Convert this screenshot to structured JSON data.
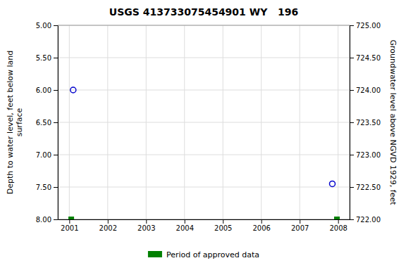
{
  "chart_data": {
    "type": "scatter",
    "title": "USGS 413733075454901 WY   196",
    "y_label": "Depth to water level, feet below land\nsurface",
    "y2_label": "Groundwater level above NGVD 1929, feet",
    "xlim": [
      2000.7,
      2008.3
    ],
    "xticks": [
      2001,
      2002,
      2003,
      2004,
      2005,
      2006,
      2007,
      2008
    ],
    "ylim": [
      8.0,
      5.0
    ],
    "yticks": [
      {
        "value": 5.0,
        "label": "5.00"
      },
      {
        "value": 5.5,
        "label": "5.50"
      },
      {
        "value": 6.0,
        "label": "6.00"
      },
      {
        "value": 6.5,
        "label": "6.50"
      },
      {
        "value": 7.0,
        "label": "7.00"
      },
      {
        "value": 7.5,
        "label": "7.50"
      },
      {
        "value": 8.0,
        "label": "8.00"
      }
    ],
    "y2lim": [
      722.0,
      725.0
    ],
    "y2ticks": [
      {
        "value": 725.0,
        "label": "725.00"
      },
      {
        "value": 724.5,
        "label": "724.50"
      },
      {
        "value": 724.0,
        "label": "724.00"
      },
      {
        "value": 723.5,
        "label": "723.50"
      },
      {
        "value": 723.0,
        "label": "723.00"
      },
      {
        "value": 722.5,
        "label": "722.50"
      },
      {
        "value": 722.0,
        "label": "722.00"
      }
    ],
    "grid": true,
    "legend": "bottom",
    "series": [
      {
        "color": "#0000cc",
        "marker": "circle-open",
        "x": [
          2001.1,
          2007.85
        ],
        "values": [
          6.0,
          7.45
        ]
      },
      {
        "name": "Period of approved data",
        "color": "#008000",
        "marker": "square",
        "x": [
          2001.05,
          2007.97
        ],
        "values": [
          8.0,
          8.0
        ]
      }
    ]
  }
}
